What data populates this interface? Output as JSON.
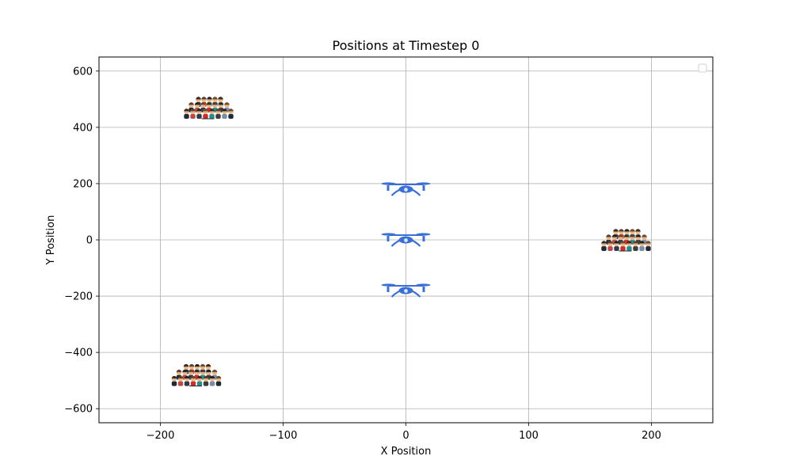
{
  "chart_data": {
    "type": "scatter",
    "title": "Positions at Timestep 0",
    "xlabel": "X Position",
    "ylabel": "Y Position",
    "xlim": [
      -250,
      250
    ],
    "ylim": [
      -650,
      650
    ],
    "xticks": [
      -200,
      -100,
      0,
      100,
      200
    ],
    "yticks": [
      -600,
      -400,
      -200,
      0,
      200,
      400,
      600
    ],
    "xtick_labels": [
      "−200",
      "−100",
      "0",
      "100",
      "200"
    ],
    "ytick_labels": [
      "−600",
      "−400",
      "−200",
      "0",
      "200",
      "400",
      "600"
    ],
    "grid": true,
    "legend": {
      "placement": "top-right",
      "entries": []
    },
    "series": [
      {
        "marker": "drone-icon",
        "color": "#3b6fd4",
        "points": [
          {
            "x": 0,
            "y": 180
          },
          {
            "x": 0,
            "y": 0
          },
          {
            "x": 0,
            "y": -180
          }
        ]
      },
      {
        "marker": "crowd-icon",
        "points": [
          {
            "x": -160,
            "y": 470
          },
          {
            "x": 180,
            "y": 0
          },
          {
            "x": -170,
            "y": -480
          }
        ]
      }
    ]
  }
}
